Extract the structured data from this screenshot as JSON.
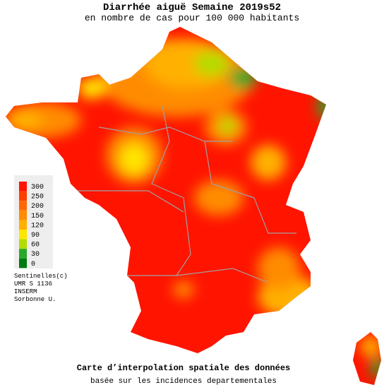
{
  "header": {
    "title": "Diarrhée aiguë Semaine 2019s52",
    "subtitle": "en nombre de cas pour 100 000 habitants"
  },
  "legend": {
    "items": [
      {
        "value": 300,
        "color": "#ff1400"
      },
      {
        "value": 250,
        "color": "#ff4000"
      },
      {
        "value": 200,
        "color": "#ff6800"
      },
      {
        "value": 150,
        "color": "#ff8c00"
      },
      {
        "value": 120,
        "color": "#ffb000"
      },
      {
        "value": 90,
        "color": "#ffe600"
      },
      {
        "value": 60,
        "color": "#b4dc00"
      },
      {
        "value": 30,
        "color": "#28a82a"
      },
      {
        "value": 0,
        "color": "#007a10"
      }
    ]
  },
  "credits": [
    "Sentinelles(c)",
    "UMR S 1136",
    "INSERM",
    "Sorbonne U."
  ],
  "footer": {
    "title": "Carte d’interpolation spatiale des données",
    "subtitle": "basée sur les incidences departementales"
  }
}
